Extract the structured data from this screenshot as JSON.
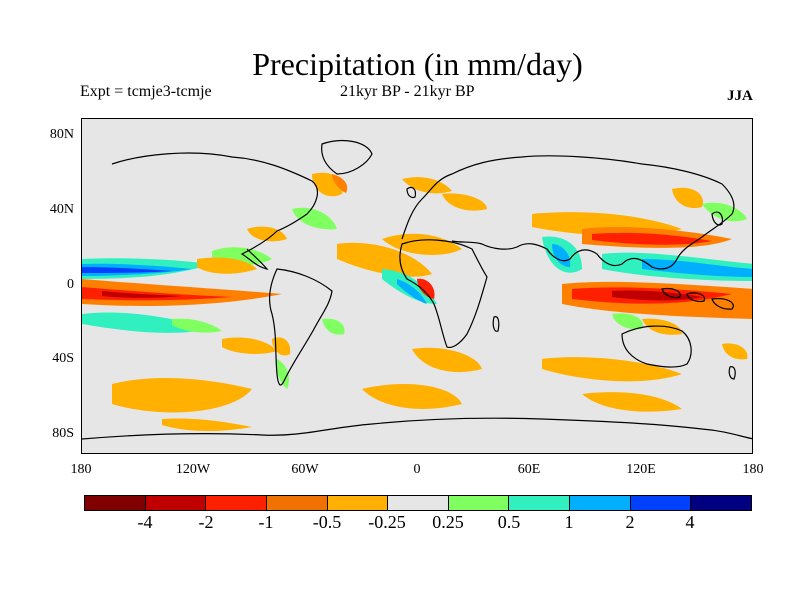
{
  "title": "Precipitation (in mm/day)",
  "expt": "Expt = tcmje3-tcmje",
  "period": "21kyr BP - 21kyr BP",
  "season": "JJA",
  "y_axis_labels": [
    "80N",
    "40N",
    "0",
    "40S",
    "80S"
  ],
  "x_axis_labels": [
    "180",
    "120W",
    "60W",
    "0",
    "60E",
    "120E",
    "180"
  ],
  "colorbar": {
    "colors": [
      "#800000",
      "#c00000",
      "#ff2000",
      "#f07000",
      "#ffb000",
      "#e6e6e6",
      "#80ff60",
      "#30f0c0",
      "#00b0ff",
      "#0040ff",
      "#000080"
    ],
    "labels": [
      "-4",
      "-2",
      "-1",
      "-0.5",
      "-0.25",
      "0.25",
      "0.5",
      "1",
      "2",
      "4"
    ]
  }
}
